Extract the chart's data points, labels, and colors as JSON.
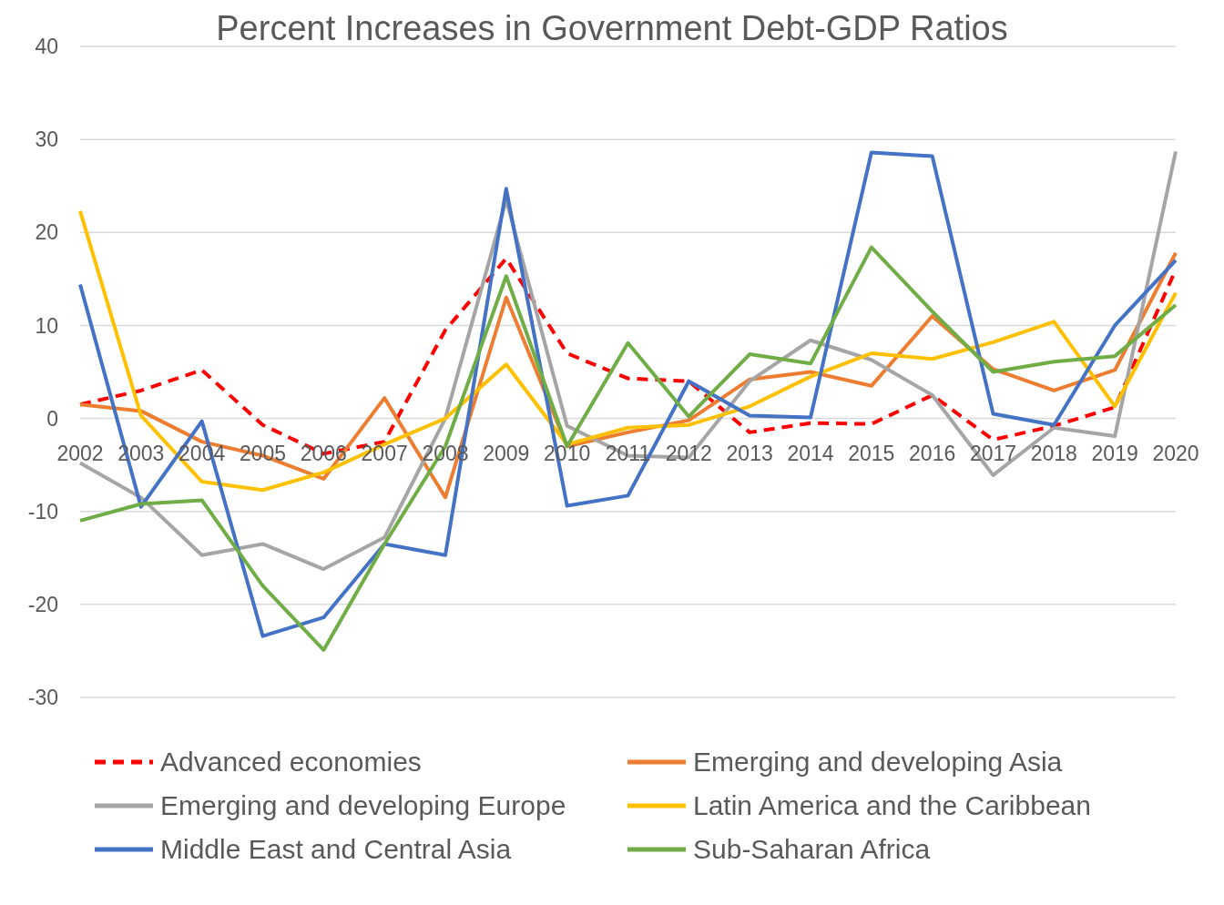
{
  "chart_data": {
    "type": "line",
    "title": "Percent Increases in Government Debt-GDP Ratios",
    "categories": [
      "2002",
      "2003",
      "2004",
      "2005",
      "2006",
      "2007",
      "2008",
      "2009",
      "2010",
      "2011",
      "2012",
      "2013",
      "2014",
      "2015",
      "2016",
      "2017",
      "2018",
      "2019",
      "2020"
    ],
    "series": [
      {
        "name": "Advanced economies",
        "color": "#ff0000",
        "line_style": "dashed",
        "values": [
          1.5,
          3,
          5.2,
          -0.7,
          -3.8,
          -2.5,
          9.5,
          17.2,
          7,
          4.3,
          4,
          -1.5,
          -0.5,
          -0.6,
          2.5,
          -2.3,
          -0.8,
          1.2,
          16
        ]
      },
      {
        "name": "Emerging and developing Asia",
        "color": "#ed7d31",
        "values": [
          1.5,
          0.8,
          -2.5,
          -4,
          -6.5,
          2.2,
          -8.5,
          13,
          -3,
          -1.5,
          -0.2,
          4.2,
          5,
          3.5,
          11,
          5.3,
          3,
          5.2,
          17.8
        ]
      },
      {
        "name": "Emerging and developing Europe",
        "color": "#a5a5a5",
        "values": [
          -4.8,
          -8.5,
          -14.7,
          -13.5,
          -16.2,
          -12.8,
          0,
          23.5,
          -0.8,
          -4,
          -4.2,
          4,
          8.4,
          6.3,
          2.5,
          -6.1,
          -1,
          -1.9,
          28.7
        ]
      },
      {
        "name": "Latin America and the Caribbean",
        "color": "#ffc000",
        "values": [
          22.3,
          0.3,
          -6.8,
          -7.7,
          -5.8,
          -2.8,
          0,
          5.8,
          -2.8,
          -1,
          -0.7,
          1.3,
          4.5,
          7,
          6.4,
          8.2,
          10.4,
          1.3,
          13.5
        ]
      },
      {
        "name": "Middle East and Central Asia",
        "color": "#4472c4",
        "values": [
          14.4,
          -9.5,
          -0.3,
          -23.4,
          -21.4,
          -13.5,
          -14.7,
          24.7,
          -9.4,
          -8.3,
          4,
          0.3,
          0.1,
          28.6,
          28.2,
          0.5,
          -0.7,
          10,
          17
        ]
      },
      {
        "name": "Sub-Saharan Africa",
        "color": "#70ad47",
        "values": [
          -11,
          -9.2,
          -8.8,
          -18,
          -24.9,
          -13.5,
          -3,
          15.3,
          -3,
          8.1,
          0.2,
          6.9,
          5.9,
          18.4,
          11.5,
          5,
          6.1,
          6.7,
          12.2
        ]
      }
    ],
    "ylim": [
      -30,
      40
    ],
    "yticks": [
      -30,
      -20,
      -10,
      0,
      10,
      20,
      30,
      40
    ],
    "grid": "y",
    "legend": "bottom",
    "marker": "none"
  }
}
